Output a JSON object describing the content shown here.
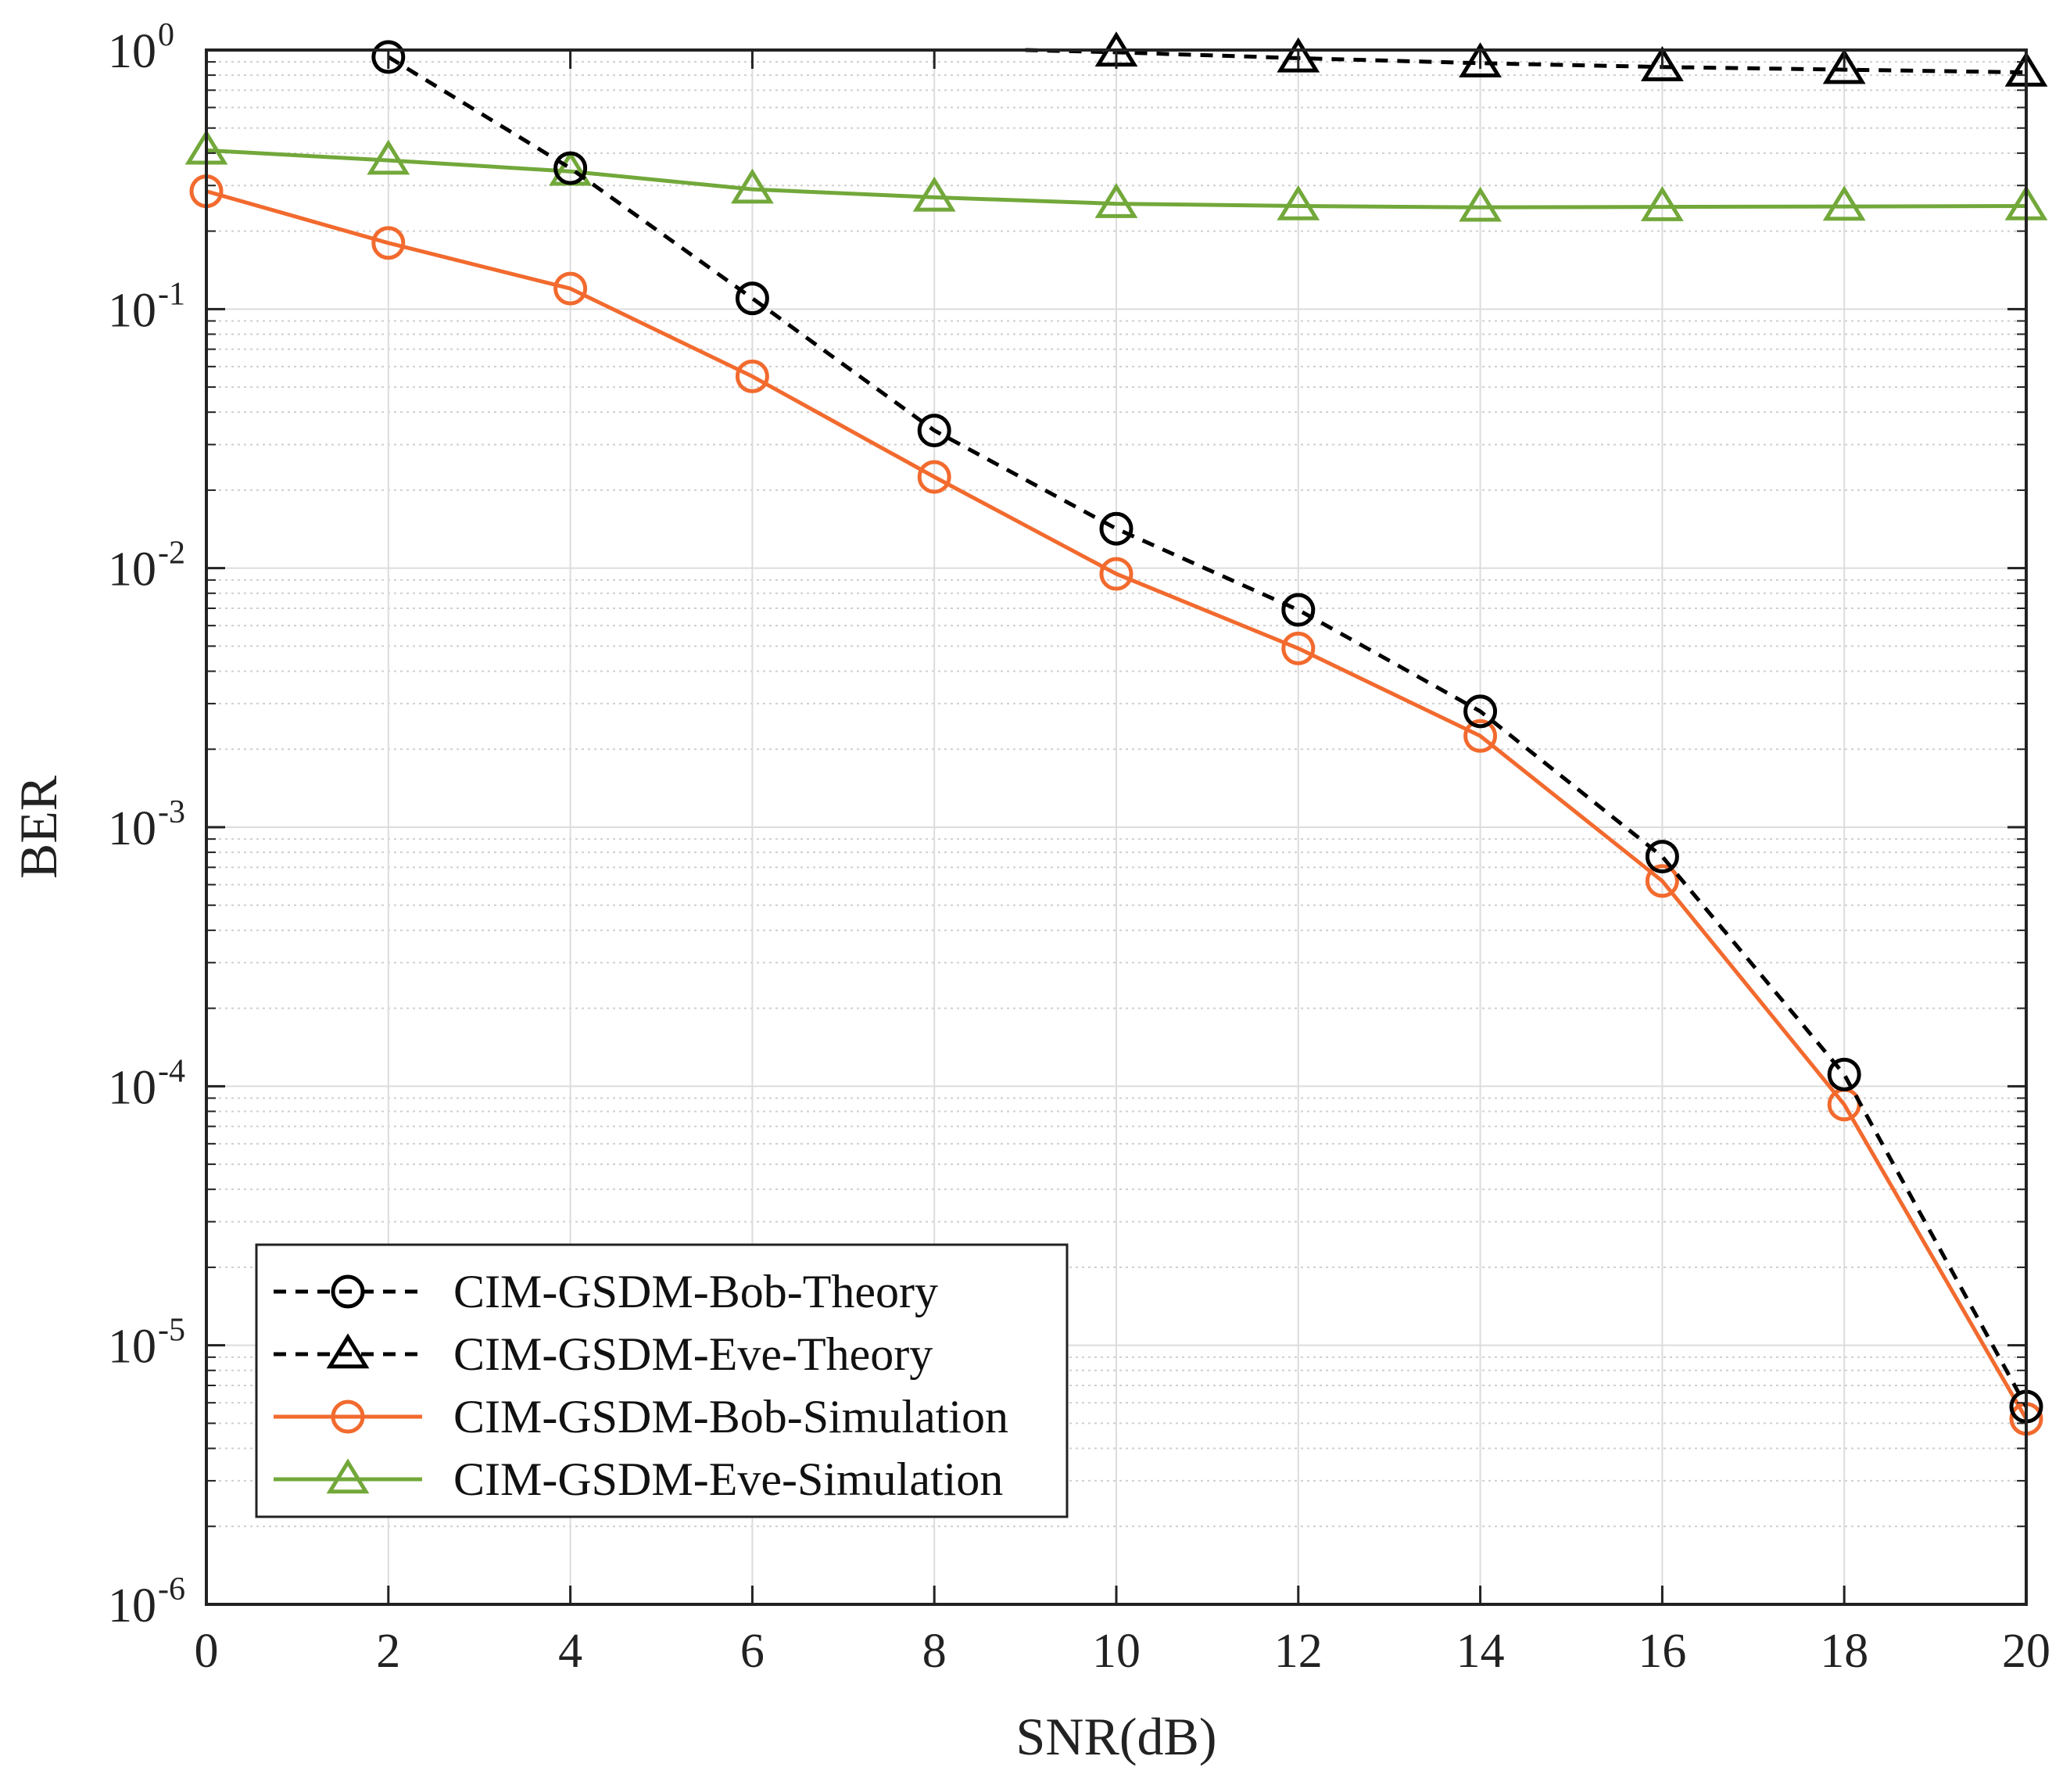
{
  "chart_data": {
    "type": "line",
    "title": "",
    "xlabel": "SNR(dB)",
    "ylabel": "BER",
    "xlim": [
      0,
      20
    ],
    "ylim": [
      1e-06,
      1
    ],
    "yscale": "log",
    "grid": true,
    "xticks": [
      0,
      2,
      4,
      6,
      8,
      10,
      12,
      14,
      16,
      18,
      20
    ],
    "xtick_labels": [
      "0",
      "2",
      "4",
      "6",
      "8",
      "10",
      "12",
      "14",
      "16",
      "18",
      "20"
    ],
    "yticks": [
      {
        "value": 1e-06,
        "base": "10",
        "exp": "-6"
      },
      {
        "value": 1e-05,
        "base": "10",
        "exp": "-5"
      },
      {
        "value": 0.0001,
        "base": "10",
        "exp": "-4"
      },
      {
        "value": 0.001,
        "base": "10",
        "exp": "-3"
      },
      {
        "value": 0.01,
        "base": "10",
        "exp": "-2"
      },
      {
        "value": 0.1,
        "base": "10",
        "exp": "-1"
      },
      {
        "value": 1,
        "base": "10",
        "exp": "0"
      }
    ],
    "legend_position": "bottom-left",
    "series": [
      {
        "name": "CIM-GSDM-Bob-Theory",
        "color": "#000000",
        "dash": "dashed",
        "marker": "circle",
        "x": [
          2,
          4,
          6,
          8,
          10,
          12,
          14,
          16,
          18,
          20
        ],
        "values": [
          0.94,
          0.35,
          0.11,
          0.034,
          0.0142,
          0.0069,
          0.0028,
          0.00077,
          0.000111,
          5.8e-06
        ]
      },
      {
        "name": "CIM-GSDM-Eve-Theory",
        "color": "#000000",
        "dash": "dashed",
        "marker": "triangle",
        "line_x": [
          9,
          10,
          12,
          14,
          16,
          18,
          20
        ],
        "line_values": [
          1.0,
          0.98,
          0.93,
          0.89,
          0.86,
          0.84,
          0.82
        ],
        "x": [
          10,
          12,
          14,
          16,
          18,
          20
        ],
        "values": [
          0.98,
          0.93,
          0.89,
          0.86,
          0.84,
          0.82
        ]
      },
      {
        "name": "CIM-GSDM-Bob-Simulation",
        "color": "#F26A2E",
        "dash": "solid",
        "marker": "circle",
        "x": [
          0,
          2,
          4,
          6,
          8,
          10,
          12,
          14,
          16,
          18,
          20
        ],
        "values": [
          0.285,
          0.18,
          0.12,
          0.055,
          0.0225,
          0.0095,
          0.0049,
          0.00225,
          0.00062,
          8.5e-05,
          5.2e-06
        ]
      },
      {
        "name": "CIM-GSDM-Eve-Simulation",
        "color": "#72A83A",
        "dash": "solid",
        "marker": "triangle",
        "x": [
          0,
          2,
          4,
          6,
          8,
          10,
          12,
          14,
          16,
          18,
          20
        ],
        "values": [
          0.41,
          0.375,
          0.34,
          0.29,
          0.27,
          0.255,
          0.25,
          0.247,
          0.248,
          0.249,
          0.25
        ]
      }
    ]
  }
}
